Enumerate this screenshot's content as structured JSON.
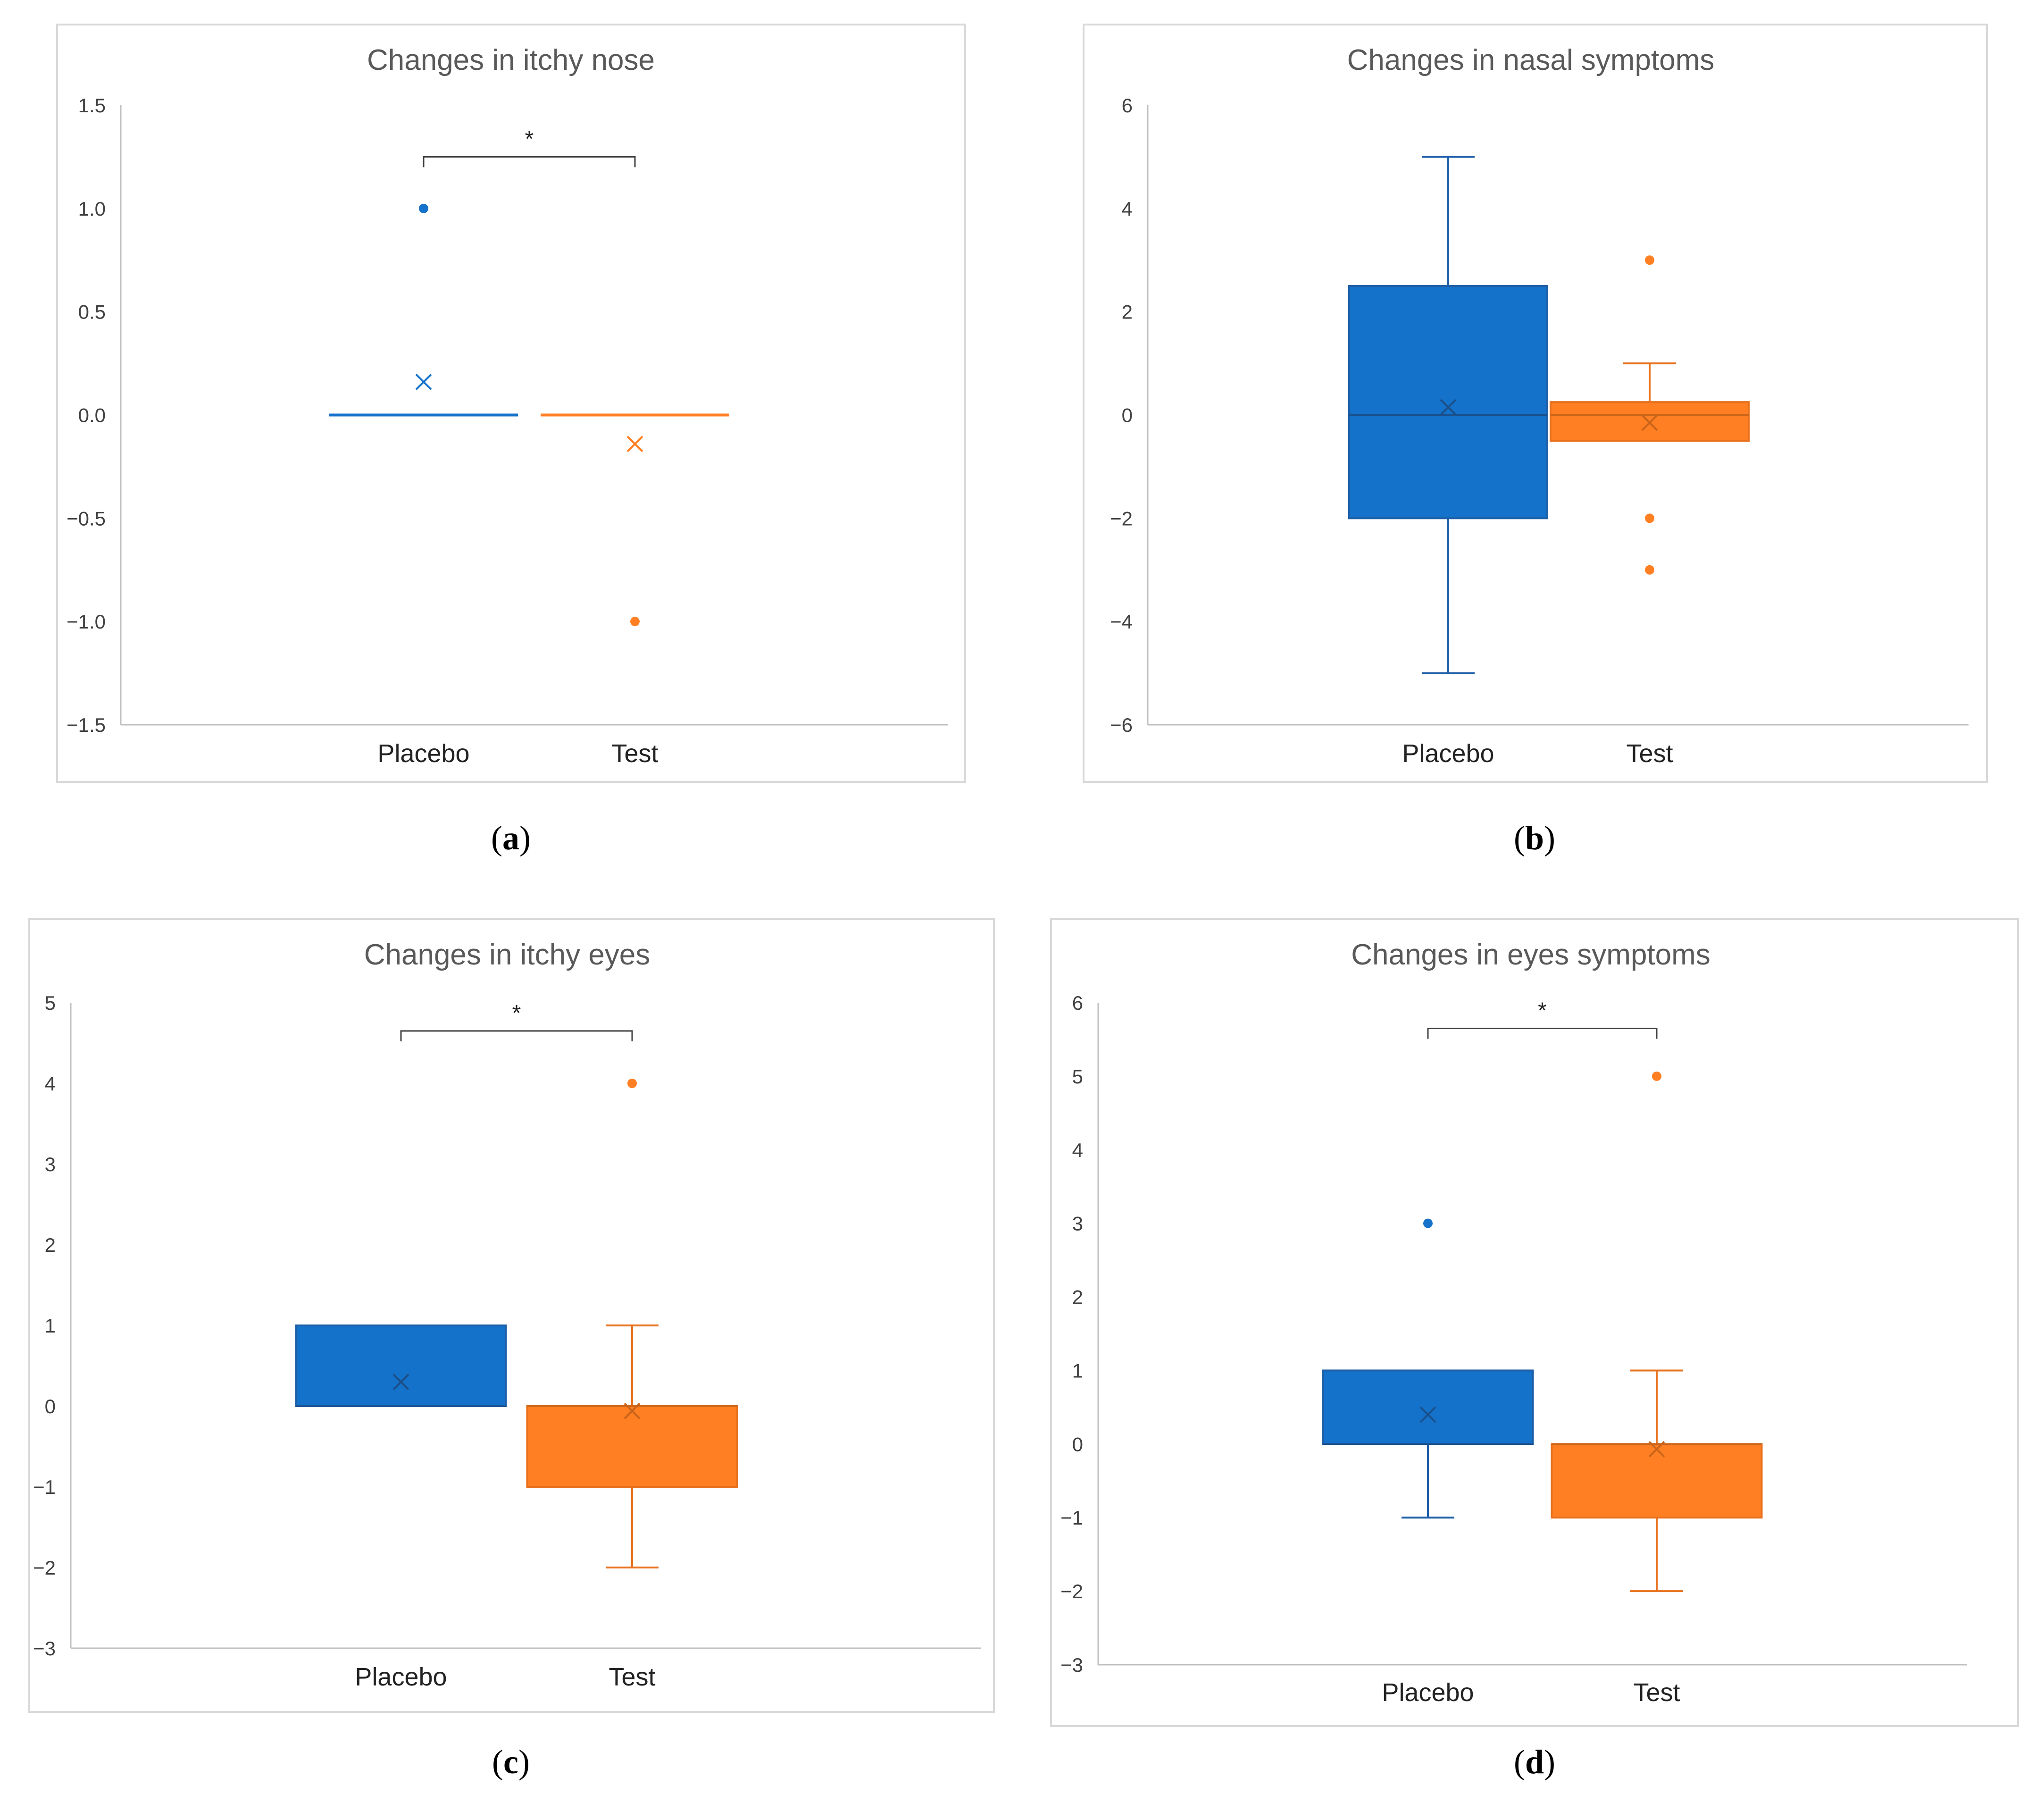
{
  "colors": {
    "placebo": "#1472CA",
    "placebo_stroke": "#1F5FA8",
    "test": "#FF7F22",
    "test_stroke": "#E8711E",
    "frame": "#D9D9D9",
    "axis": "#BFBFBF"
  },
  "chart_data": [
    {
      "panel": "(a)",
      "panel_letter": "a",
      "type": "box",
      "title": "Changes in itchy nose",
      "categories": [
        "Placebo",
        "Test"
      ],
      "ylim": [
        -1.5,
        1.5
      ],
      "yticks": [
        -1.5,
        -1.0,
        -0.5,
        0.0,
        0.5,
        1.0,
        1.5
      ],
      "ytick_labels": [
        "−1.5",
        "−1.0",
        "−0.5",
        "0.0",
        "0.5",
        "1.0",
        "1.5"
      ],
      "series": [
        {
          "name": "Placebo",
          "whisker_low": 0,
          "q1": 0,
          "median": 0,
          "q3": 0,
          "whisker_high": 0,
          "mean": 0.16,
          "outliers": [
            1.0
          ]
        },
        {
          "name": "Test",
          "whisker_low": 0,
          "q1": 0,
          "median": 0,
          "q3": 0,
          "whisker_high": 0,
          "mean": -0.14,
          "outliers": [
            -1.0
          ]
        }
      ],
      "significance": {
        "label": "*",
        "y": 1.25
      }
    },
    {
      "panel": "(b)",
      "panel_letter": "b",
      "type": "box",
      "title": "Changes in nasal symptoms",
      "categories": [
        "Placebo",
        "Test"
      ],
      "ylim": [
        -6,
        6
      ],
      "yticks": [
        -6,
        -4,
        -2,
        0,
        2,
        4,
        6
      ],
      "ytick_labels": [
        "−6",
        "−4",
        "−2",
        "0",
        "2",
        "4",
        "6"
      ],
      "series": [
        {
          "name": "Placebo",
          "whisker_low": -5,
          "q1": -2,
          "median": 0,
          "q3": 2.5,
          "whisker_high": 5,
          "mean": 0.15,
          "outliers": []
        },
        {
          "name": "Test",
          "whisker_low": -0.5,
          "q1": -0.5,
          "median": 0,
          "q3": 0.25,
          "whisker_high": 1,
          "mean": -0.15,
          "outliers": [
            3,
            -2,
            -3
          ]
        }
      ],
      "significance": null
    },
    {
      "panel": "(c)",
      "panel_letter": "c",
      "type": "box",
      "title": "Changes in itchy eyes",
      "categories": [
        "Placebo",
        "Test"
      ],
      "ylim": [
        -3,
        5
      ],
      "yticks": [
        -3,
        -2,
        -1,
        0,
        1,
        2,
        3,
        4,
        5
      ],
      "ytick_labels": [
        "−3",
        "−2",
        "−1",
        "0",
        "1",
        "2",
        "3",
        "4",
        "5"
      ],
      "series": [
        {
          "name": "Placebo",
          "whisker_low": 0,
          "q1": 0,
          "median": 0,
          "q3": 1,
          "whisker_high": 1,
          "mean": 0.3,
          "outliers": []
        },
        {
          "name": "Test",
          "whisker_low": -2,
          "q1": -1,
          "median": 0,
          "q3": 0,
          "whisker_high": 1,
          "mean": -0.06,
          "outliers": [
            4
          ]
        }
      ],
      "significance": {
        "label": "*",
        "y": 4.65
      }
    },
    {
      "panel": "(d)",
      "panel_letter": "d",
      "type": "box",
      "title": "Changes in eyes symptoms",
      "categories": [
        "Placebo",
        "Test"
      ],
      "ylim": [
        -3,
        6
      ],
      "yticks": [
        -3,
        -2,
        -1,
        0,
        1,
        2,
        3,
        4,
        5,
        6
      ],
      "ytick_labels": [
        "−3",
        "−2",
        "−1",
        "0",
        "1",
        "2",
        "3",
        "4",
        "5",
        "6"
      ],
      "series": [
        {
          "name": "Placebo",
          "whisker_low": -1,
          "q1": 0,
          "median": 0,
          "q3": 1,
          "whisker_high": 1,
          "mean": 0.4,
          "outliers": [
            3
          ]
        },
        {
          "name": "Test",
          "whisker_low": -2,
          "q1": -1,
          "median": 0,
          "q3": 0,
          "whisker_high": 1,
          "mean": -0.07,
          "outliers": [
            5
          ]
        }
      ],
      "significance": {
        "label": "*",
        "y": 5.65
      }
    }
  ]
}
